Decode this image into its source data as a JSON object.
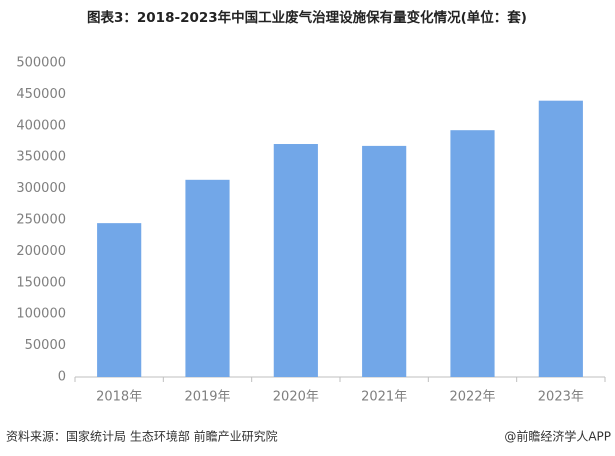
{
  "chart_data": {
    "type": "bar",
    "title": "图表3：2018-2023年中国工业废气治理设施保有量变化情况(单位：套)",
    "categories": [
      "2018年",
      "2019年",
      "2020年",
      "2021年",
      "2022年",
      "2023年"
    ],
    "values": [
      245000,
      314000,
      371000,
      368000,
      393000,
      440000
    ],
    "color": "#72a7e8",
    "ylim": [
      0,
      500000
    ],
    "yticks": [
      0,
      50000,
      100000,
      150000,
      200000,
      250000,
      300000,
      350000,
      400000,
      450000,
      500000
    ],
    "grid": false,
    "source": "资料来源：国家统计局 生态环境部 前瞻产业研究院",
    "credit": "@前瞻经济学人APP"
  }
}
